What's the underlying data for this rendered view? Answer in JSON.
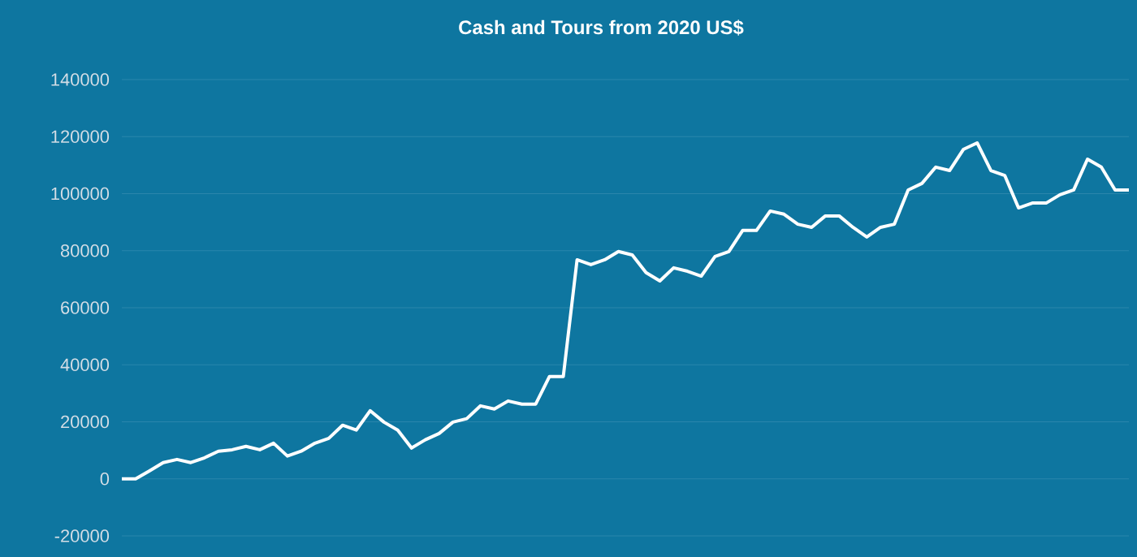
{
  "chart_data": {
    "type": "line",
    "title": "Cash and Tours from 2020 US$",
    "categories": [
      null,
      null,
      null,
      null,
      null,
      null,
      null,
      null,
      null,
      null,
      null,
      null,
      null,
      null,
      null,
      null,
      null,
      null,
      null,
      null,
      null,
      null,
      null,
      null,
      null,
      null,
      null,
      null,
      null,
      null,
      null,
      null,
      null,
      null,
      null,
      null,
      null,
      null,
      null,
      null,
      null,
      null,
      null,
      null,
      null,
      null,
      null,
      null,
      null,
      null,
      null,
      null,
      null,
      null,
      null,
      null,
      null,
      null,
      null,
      null,
      null,
      null,
      null,
      null,
      null,
      null,
      null,
      null,
      null,
      null,
      null,
      null,
      null,
      null
    ],
    "values": [
      0,
      0,
      2800,
      5700,
      6800,
      5700,
      7400,
      9700,
      10200,
      11400,
      10200,
      12500,
      8000,
      9700,
      12500,
      14200,
      18800,
      17100,
      23900,
      19900,
      17100,
      10800,
      13700,
      15900,
      19900,
      21100,
      25600,
      24500,
      27300,
      26200,
      26200,
      35900,
      35900,
      76800,
      75100,
      76800,
      79700,
      78500,
      72300,
      69400,
      74000,
      72800,
      71100,
      78000,
      79700,
      87100,
      87100,
      93900,
      92800,
      89300,
      88200,
      92200,
      92200,
      88200,
      84800,
      88200,
      89300,
      101300,
      103600,
      109300,
      108100,
      115500,
      117800,
      108100,
      106400,
      95000,
      96700,
      96700,
      99600,
      101300,
      112100,
      109300,
      101300,
      101300
    ],
    "color": "#ffffff",
    "ylim": [
      -20000,
      140000
    ],
    "yticks": [
      -20000,
      0,
      20000,
      40000,
      60000,
      80000,
      100000,
      120000,
      140000
    ],
    "grid": "y"
  }
}
